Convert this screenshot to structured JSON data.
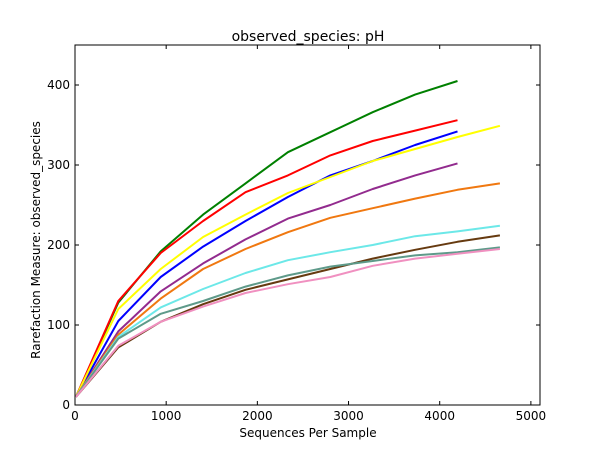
{
  "chart_data": {
    "type": "line",
    "title": "observed_species: pH",
    "xlabel": "Sequences Per Sample",
    "ylabel": "Rarefaction Measure: observed_species",
    "xlim": [
      0,
      5100
    ],
    "ylim": [
      0,
      450
    ],
    "xticks": [
      0,
      1000,
      2000,
      3000,
      4000,
      5000
    ],
    "yticks": [
      0,
      100,
      200,
      300,
      400
    ],
    "grid": false,
    "series": [
      {
        "color": "#008000",
        "x": [
          10,
          475,
          940,
          1405,
          1870,
          2335,
          2800,
          3265,
          3730,
          4195
        ],
        "y": [
          10,
          128,
          192,
          238,
          277,
          316,
          341,
          366,
          388,
          405
        ]
      },
      {
        "color": "#ff0000",
        "x": [
          10,
          475,
          940,
          1405,
          1870,
          2335,
          2800,
          3265,
          3730,
          4195
        ],
        "y": [
          10,
          130,
          190,
          230,
          266,
          287,
          312,
          330,
          343,
          356
        ]
      },
      {
        "color": "#0000ff",
        "x": [
          10,
          475,
          940,
          1405,
          1870,
          2335,
          2800,
          3265,
          3730,
          4195
        ],
        "y": [
          10,
          105,
          160,
          198,
          230,
          260,
          287,
          305,
          325,
          342
        ]
      },
      {
        "color": "#ffff00",
        "x": [
          10,
          475,
          940,
          1405,
          1870,
          2335,
          2800,
          3265,
          3730,
          4195,
          4660
        ],
        "y": [
          10,
          120,
          170,
          210,
          238,
          265,
          285,
          305,
          320,
          335,
          349
        ]
      },
      {
        "color": "#922b8e",
        "x": [
          10,
          475,
          940,
          1405,
          1870,
          2335,
          2800,
          3265,
          3730,
          4195
        ],
        "y": [
          10,
          92,
          142,
          177,
          207,
          233,
          250,
          270,
          287,
          302
        ]
      },
      {
        "color": "#f07810",
        "x": [
          10,
          475,
          940,
          1405,
          1870,
          2335,
          2800,
          3265,
          3730,
          4195,
          4660
        ],
        "y": [
          10,
          88,
          133,
          170,
          195,
          216,
          234,
          246,
          258,
          269,
          277
        ]
      },
      {
        "color": "#6ce8e8",
        "x": [
          10,
          475,
          940,
          1405,
          1870,
          2335,
          2800,
          3265,
          3730,
          4195,
          4660
        ],
        "y": [
          10,
          85,
          122,
          145,
          165,
          181,
          191,
          200,
          211,
          217,
          224
        ]
      },
      {
        "color": "#663a10",
        "x": [
          10,
          475,
          940,
          1405,
          1870,
          2335,
          2800,
          3265,
          3730,
          4195,
          4660
        ],
        "y": [
          10,
          72,
          104,
          126,
          144,
          157,
          170,
          183,
          194,
          204,
          212
        ]
      },
      {
        "color": "#5e9a8a",
        "x": [
          10,
          475,
          940,
          1405,
          1870,
          2335,
          2800,
          3265,
          3730,
          4195,
          4660
        ],
        "y": [
          10,
          83,
          114,
          130,
          148,
          162,
          173,
          180,
          187,
          191,
          197
        ]
      },
      {
        "color": "#f090c0",
        "x": [
          10,
          475,
          940,
          1405,
          1870,
          2335,
          2800,
          3265,
          3730,
          4195,
          4660
        ],
        "y": [
          10,
          74,
          104,
          123,
          140,
          151,
          160,
          174,
          183,
          189,
          195
        ]
      }
    ]
  }
}
